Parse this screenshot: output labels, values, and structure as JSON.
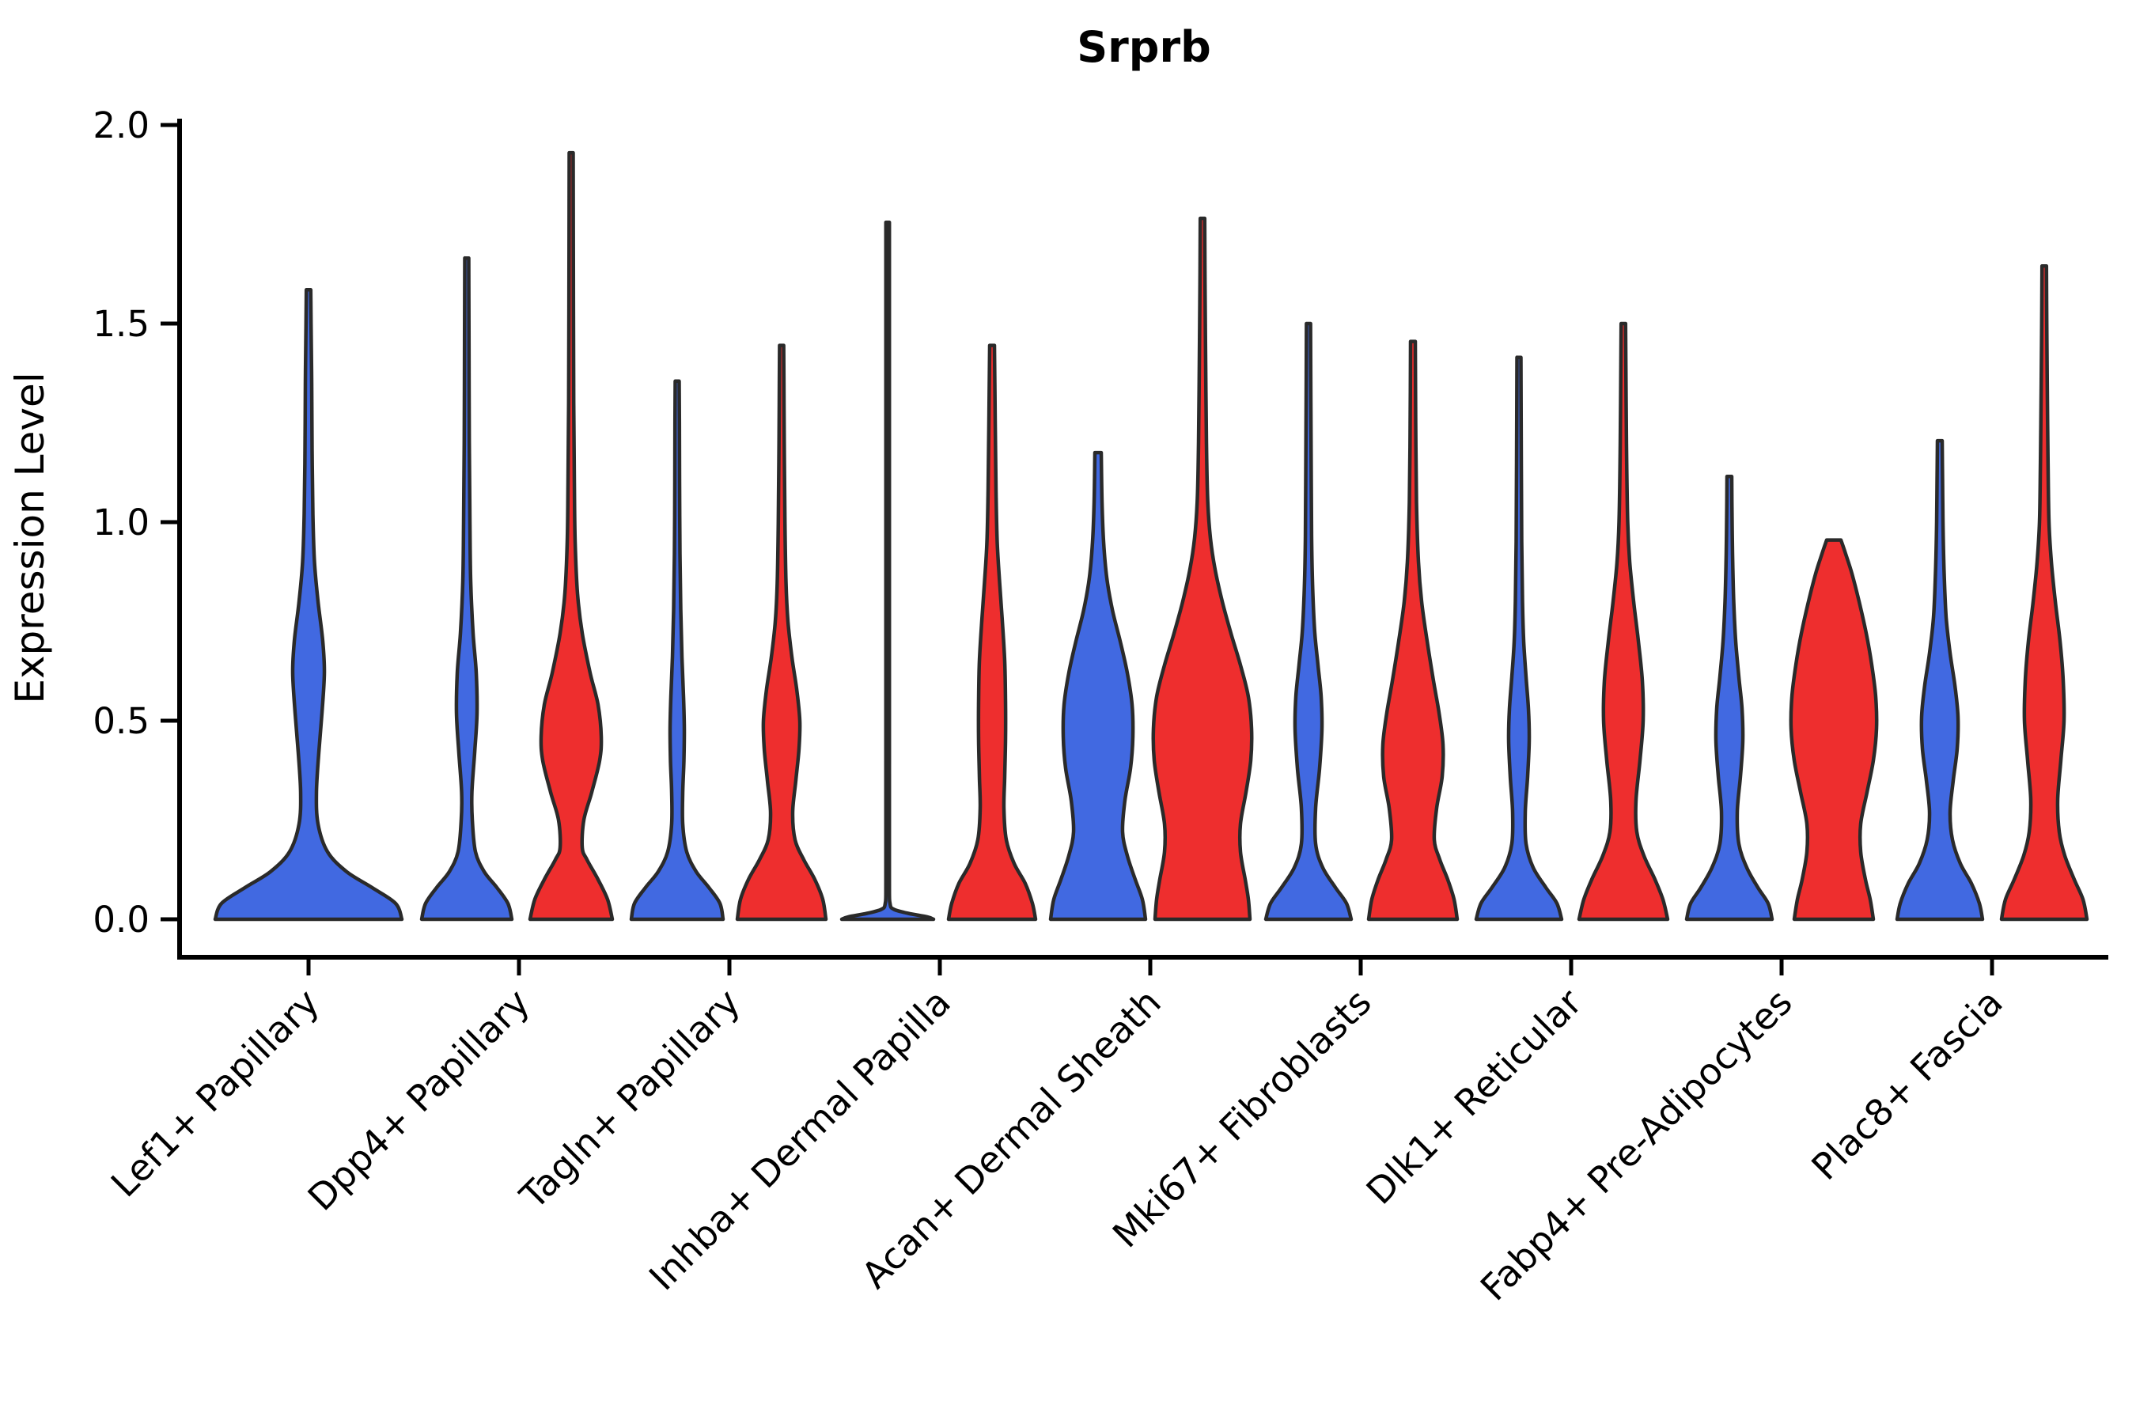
{
  "chart_data": {
    "type": "violin",
    "variant": "grouped-violin-two-series-per-category",
    "title": "Srprb",
    "xlabel": "",
    "ylabel": "Expression Level",
    "ylim": [
      -0.1,
      2.07
    ],
    "yticks": [
      "0.0",
      "0.5",
      "1.0",
      "1.5",
      "2.0"
    ],
    "ytick_values": [
      0.0,
      0.5,
      1.0,
      1.5,
      2.0
    ],
    "grid": "off",
    "legend": "none",
    "categories": [
      "Lef1+ Papillary",
      "Dpp4+ Papillary",
      "Tagln+ Papillary",
      "Inhba+ Dermal Papilla",
      "Acan+ Dermal Sheath",
      "Mki67+ Fibroblasts",
      "Dlk1+ Reticular",
      "Fabp4+ Pre-Adipocytes",
      "Plac8+ Fascia"
    ],
    "colors": {
      "blue_fill": "#4169E1",
      "red_fill": "#EE2E2E",
      "outline": "#2A2A2A",
      "axis": "#000000"
    },
    "violins": [
      {
        "category": "Lef1+ Papillary",
        "group": "blue",
        "position": "center",
        "max_expression": 1.585,
        "width_profile": [
          [
            0,
            118
          ],
          [
            0.04,
            110
          ],
          [
            0.08,
            80
          ],
          [
            0.12,
            48
          ],
          [
            0.17,
            24
          ],
          [
            0.24,
            12
          ],
          [
            0.32,
            10
          ],
          [
            0.42,
            13
          ],
          [
            0.52,
            17
          ],
          [
            0.62,
            20
          ],
          [
            0.7,
            18
          ],
          [
            0.8,
            12
          ],
          [
            0.9,
            7.5
          ],
          [
            1.02,
            5.5
          ],
          [
            1.18,
            4.5
          ],
          [
            1.35,
            4
          ],
          [
            1.5,
            3.2
          ],
          [
            1.585,
            2.8
          ]
        ]
      },
      {
        "category": "Dpp4+ Papillary",
        "group": "blue",
        "position": "left",
        "max_expression": 1.665,
        "width_profile": [
          [
            0,
            57
          ],
          [
            0.04,
            52
          ],
          [
            0.08,
            38
          ],
          [
            0.12,
            22
          ],
          [
            0.17,
            11
          ],
          [
            0.25,
            7
          ],
          [
            0.32,
            6.5
          ],
          [
            0.42,
            10
          ],
          [
            0.52,
            13
          ],
          [
            0.62,
            12
          ],
          [
            0.72,
            8
          ],
          [
            0.85,
            5
          ],
          [
            1.0,
            4
          ],
          [
            1.2,
            3.2
          ],
          [
            1.45,
            2.8
          ],
          [
            1.665,
            2.5
          ]
        ]
      },
      {
        "category": "Dpp4+ Papillary",
        "group": "red",
        "position": "right",
        "max_expression": 1.93,
        "width_profile": [
          [
            0,
            52
          ],
          [
            0.05,
            46
          ],
          [
            0.1,
            34
          ],
          [
            0.15,
            20
          ],
          [
            0.18,
            14
          ],
          [
            0.25,
            16
          ],
          [
            0.32,
            26
          ],
          [
            0.4,
            36
          ],
          [
            0.46,
            38
          ],
          [
            0.54,
            34
          ],
          [
            0.62,
            24
          ],
          [
            0.72,
            14
          ],
          [
            0.82,
            8
          ],
          [
            0.95,
            5
          ],
          [
            1.1,
            4
          ],
          [
            1.3,
            3.2
          ],
          [
            1.6,
            2.8
          ],
          [
            1.93,
            2.5
          ]
        ]
      },
      {
        "category": "Tagln+ Papillary",
        "group": "blue",
        "position": "left",
        "max_expression": 1.355,
        "width_profile": [
          [
            0,
            58
          ],
          [
            0.04,
            54
          ],
          [
            0.08,
            40
          ],
          [
            0.12,
            24
          ],
          [
            0.17,
            12
          ],
          [
            0.24,
            7
          ],
          [
            0.32,
            7
          ],
          [
            0.4,
            8.5
          ],
          [
            0.48,
            9
          ],
          [
            0.56,
            8
          ],
          [
            0.66,
            6
          ],
          [
            0.78,
            4.5
          ],
          [
            0.92,
            3.5
          ],
          [
            1.1,
            3
          ],
          [
            1.25,
            2.8
          ],
          [
            1.355,
            2.5
          ]
        ]
      },
      {
        "category": "Tagln+ Papillary",
        "group": "red",
        "position": "right",
        "max_expression": 1.445,
        "width_profile": [
          [
            0,
            56
          ],
          [
            0.05,
            52
          ],
          [
            0.1,
            42
          ],
          [
            0.15,
            28
          ],
          [
            0.2,
            17
          ],
          [
            0.27,
            14
          ],
          [
            0.35,
            18
          ],
          [
            0.43,
            22
          ],
          [
            0.5,
            23
          ],
          [
            0.58,
            19
          ],
          [
            0.66,
            13
          ],
          [
            0.75,
            8
          ],
          [
            0.85,
            5.5
          ],
          [
            1.0,
            4.2
          ],
          [
            1.15,
            3.5
          ],
          [
            1.3,
            3
          ],
          [
            1.445,
            2.6
          ]
        ]
      },
      {
        "category": "Inhba+ Dermal Papilla",
        "group": "blue",
        "position": "left",
        "max_expression": 1.755,
        "width_profile": [
          [
            0,
            58
          ],
          [
            0.006,
            50
          ],
          [
            0.015,
            26
          ],
          [
            0.025,
            8
          ],
          [
            0.04,
            3
          ],
          [
            0.1,
            2.2
          ],
          [
            0.4,
            2.2
          ],
          [
            0.8,
            2.2
          ],
          [
            1.2,
            2.2
          ],
          [
            1.5,
            2.2
          ],
          [
            1.755,
            2.2
          ]
        ]
      },
      {
        "category": "Inhba+ Dermal Papilla",
        "group": "red",
        "position": "right",
        "max_expression": 1.445,
        "width_profile": [
          [
            0,
            55
          ],
          [
            0.04,
            51
          ],
          [
            0.09,
            42
          ],
          [
            0.14,
            28
          ],
          [
            0.2,
            18
          ],
          [
            0.28,
            15
          ],
          [
            0.36,
            16
          ],
          [
            0.45,
            17
          ],
          [
            0.55,
            17
          ],
          [
            0.65,
            16
          ],
          [
            0.75,
            13
          ],
          [
            0.85,
            9.5
          ],
          [
            0.95,
            6.5
          ],
          [
            1.08,
            5
          ],
          [
            1.25,
            4
          ],
          [
            1.445,
            3
          ]
        ]
      },
      {
        "category": "Acan+ Dermal Sheath",
        "group": "blue",
        "position": "left",
        "max_expression": 1.175,
        "width_profile": [
          [
            0,
            60
          ],
          [
            0.05,
            56
          ],
          [
            0.1,
            47
          ],
          [
            0.16,
            37
          ],
          [
            0.22,
            31
          ],
          [
            0.3,
            34
          ],
          [
            0.38,
            41
          ],
          [
            0.46,
            44
          ],
          [
            0.54,
            43
          ],
          [
            0.62,
            37
          ],
          [
            0.7,
            28
          ],
          [
            0.78,
            18
          ],
          [
            0.86,
            11
          ],
          [
            0.95,
            7
          ],
          [
            1.05,
            5
          ],
          [
            1.175,
            4
          ]
        ]
      },
      {
        "category": "Acan+ Dermal Sheath",
        "group": "red",
        "position": "right",
        "max_expression": 1.765,
        "width_profile": [
          [
            0,
            60
          ],
          [
            0.05,
            58
          ],
          [
            0.1,
            54
          ],
          [
            0.17,
            48
          ],
          [
            0.24,
            48
          ],
          [
            0.32,
            55
          ],
          [
            0.4,
            61
          ],
          [
            0.48,
            62
          ],
          [
            0.56,
            58
          ],
          [
            0.64,
            48
          ],
          [
            0.72,
            36
          ],
          [
            0.8,
            25
          ],
          [
            0.88,
            16
          ],
          [
            0.96,
            10
          ],
          [
            1.06,
            6.5
          ],
          [
            1.2,
            5
          ],
          [
            1.4,
            4
          ],
          [
            1.6,
            3.2
          ],
          [
            1.765,
            2.8
          ]
        ]
      },
      {
        "category": "Mki67+ Fibroblasts",
        "group": "blue",
        "position": "left",
        "max_expression": 1.5,
        "width_profile": [
          [
            0,
            54
          ],
          [
            0.04,
            48
          ],
          [
            0.08,
            34
          ],
          [
            0.13,
            18
          ],
          [
            0.19,
            9
          ],
          [
            0.28,
            9
          ],
          [
            0.38,
            14
          ],
          [
            0.48,
            17
          ],
          [
            0.56,
            16
          ],
          [
            0.64,
            12
          ],
          [
            0.72,
            8
          ],
          [
            0.82,
            5.5
          ],
          [
            0.95,
            4
          ],
          [
            1.1,
            3.5
          ],
          [
            1.3,
            3
          ],
          [
            1.5,
            2.6
          ]
        ]
      },
      {
        "category": "Mki67+ Fibroblasts",
        "group": "red",
        "position": "right",
        "max_expression": 1.455,
        "width_profile": [
          [
            0,
            56
          ],
          [
            0.05,
            52
          ],
          [
            0.1,
            44
          ],
          [
            0.15,
            34
          ],
          [
            0.2,
            27
          ],
          [
            0.28,
            30
          ],
          [
            0.36,
            37
          ],
          [
            0.44,
            38
          ],
          [
            0.52,
            33
          ],
          [
            0.6,
            26
          ],
          [
            0.7,
            18
          ],
          [
            0.8,
            11
          ],
          [
            0.9,
            7
          ],
          [
            1.05,
            4.5
          ],
          [
            1.25,
            3.5
          ],
          [
            1.455,
            3
          ]
        ]
      },
      {
        "category": "Dlk1+ Reticular",
        "group": "blue",
        "position": "left",
        "max_expression": 1.415,
        "width_profile": [
          [
            0,
            54
          ],
          [
            0.04,
            48
          ],
          [
            0.08,
            34
          ],
          [
            0.13,
            18
          ],
          [
            0.19,
            9
          ],
          [
            0.27,
            8
          ],
          [
            0.36,
            11
          ],
          [
            0.45,
            13
          ],
          [
            0.53,
            12
          ],
          [
            0.61,
            9
          ],
          [
            0.7,
            6
          ],
          [
            0.8,
            4.5
          ],
          [
            0.95,
            3.5
          ],
          [
            1.15,
            3
          ],
          [
            1.415,
            2.5
          ]
        ]
      },
      {
        "category": "Dlk1+ Reticular",
        "group": "red",
        "position": "right",
        "max_expression": 1.5,
        "width_profile": [
          [
            0,
            56
          ],
          [
            0.05,
            50
          ],
          [
            0.1,
            40
          ],
          [
            0.16,
            26
          ],
          [
            0.22,
            17
          ],
          [
            0.3,
            16
          ],
          [
            0.4,
            21
          ],
          [
            0.5,
            25
          ],
          [
            0.6,
            24
          ],
          [
            0.7,
            19
          ],
          [
            0.8,
            13
          ],
          [
            0.9,
            8
          ],
          [
            1.0,
            5.5
          ],
          [
            1.15,
            4.2
          ],
          [
            1.3,
            3.5
          ],
          [
            1.5,
            2.8
          ]
        ]
      },
      {
        "category": "Fabp4+ Pre-Adipocytes",
        "group": "blue",
        "position": "left",
        "max_expression": 1.115,
        "width_profile": [
          [
            0,
            54
          ],
          [
            0.04,
            49
          ],
          [
            0.08,
            36
          ],
          [
            0.13,
            22
          ],
          [
            0.19,
            12
          ],
          [
            0.27,
            10
          ],
          [
            0.36,
            14
          ],
          [
            0.45,
            17
          ],
          [
            0.53,
            16
          ],
          [
            0.61,
            12
          ],
          [
            0.7,
            8
          ],
          [
            0.8,
            5.5
          ],
          [
            0.92,
            4
          ],
          [
            1.05,
            3.2
          ],
          [
            1.115,
            3
          ]
        ]
      },
      {
        "category": "Fabp4+ Pre-Adipocytes",
        "group": "red",
        "position": "right",
        "max_expression": 0.955,
        "flat_top": true,
        "width_profile": [
          [
            0,
            50
          ],
          [
            0.05,
            46
          ],
          [
            0.1,
            40
          ],
          [
            0.17,
            34
          ],
          [
            0.24,
            34
          ],
          [
            0.32,
            42
          ],
          [
            0.4,
            50
          ],
          [
            0.48,
            54
          ],
          [
            0.56,
            53
          ],
          [
            0.64,
            48
          ],
          [
            0.72,
            41
          ],
          [
            0.8,
            32
          ],
          [
            0.87,
            23
          ],
          [
            0.92,
            15
          ],
          [
            0.955,
            9
          ]
        ]
      },
      {
        "category": "Plac8+ Fascia",
        "group": "blue",
        "position": "left",
        "max_expression": 1.205,
        "width_profile": [
          [
            0,
            54
          ],
          [
            0.04,
            50
          ],
          [
            0.09,
            40
          ],
          [
            0.14,
            26
          ],
          [
            0.2,
            16
          ],
          [
            0.27,
            13
          ],
          [
            0.35,
            17
          ],
          [
            0.43,
            22
          ],
          [
            0.51,
            23
          ],
          [
            0.59,
            19
          ],
          [
            0.67,
            13
          ],
          [
            0.76,
            8
          ],
          [
            0.87,
            5.5
          ],
          [
            1.0,
            4
          ],
          [
            1.1,
            3.5
          ],
          [
            1.205,
            3
          ]
        ]
      },
      {
        "category": "Plac8+ Fascia",
        "group": "red",
        "position": "right",
        "max_expression": 1.645,
        "width_profile": [
          [
            0,
            54
          ],
          [
            0.05,
            49
          ],
          [
            0.1,
            38
          ],
          [
            0.16,
            26
          ],
          [
            0.22,
            19
          ],
          [
            0.3,
            17
          ],
          [
            0.4,
            21
          ],
          [
            0.5,
            25
          ],
          [
            0.6,
            24
          ],
          [
            0.7,
            20
          ],
          [
            0.8,
            14
          ],
          [
            0.9,
            9
          ],
          [
            1.0,
            6
          ],
          [
            1.15,
            4.8
          ],
          [
            1.35,
            3.8
          ],
          [
            1.5,
            3.2
          ],
          [
            1.645,
            2.8
          ]
        ]
      }
    ]
  }
}
